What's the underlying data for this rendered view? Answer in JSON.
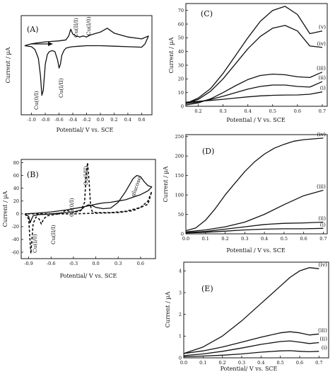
{
  "chart_data": [
    {
      "id": "A",
      "type": "line",
      "panel_label": "(A)",
      "xlabel": "Potential/ V vs. SCE",
      "ylabel": "Current / µA",
      "xlim": [
        -1.15,
        0.75
      ],
      "ylim": [
        -7,
        3.2
      ],
      "xticks": [
        -1.0,
        -0.8,
        -0.6,
        -0.4,
        -0.2,
        0.0,
        0.2,
        0.4,
        0.6
      ],
      "xtick_labels": [
        "-1.0",
        "-0.8",
        "-0.6",
        "-0.4",
        "-0.2",
        "0.0",
        "0.2",
        "0.4",
        "0.6"
      ],
      "annotations": [
        "Cu(0/I)",
        "Cu(I/II)",
        "Cu(II/I)",
        "Cu(I/0)"
      ],
      "series": [
        {
          "style": "solid",
          "x": [
            -1.1,
            -1.0,
            -0.95,
            -0.9,
            -0.87,
            -0.85,
            -0.83,
            -0.8,
            -0.77,
            -0.74,
            -0.7,
            -0.66,
            -0.62,
            -0.6,
            -0.58,
            -0.56,
            -0.53,
            -0.5,
            -0.45,
            -0.4,
            -0.3,
            -0.2,
            0.0,
            0.2,
            0.4,
            0.6,
            0.65,
            0.7,
            0.6,
            0.4,
            0.2,
            0.1,
            0.0,
            -0.1,
            -0.15,
            -0.2,
            -0.25,
            -0.3,
            -0.35,
            -0.4,
            -0.43,
            -0.46,
            -0.5,
            -0.6,
            -0.7,
            -0.8,
            -0.9,
            -1.0,
            -1.1
          ],
          "y": [
            0.1,
            0.0,
            -0.3,
            -1.2,
            -3.0,
            -5.0,
            -4.5,
            -1.8,
            -0.8,
            -0.5,
            -0.4,
            -0.5,
            -1.4,
            -2.2,
            -1.8,
            -0.9,
            -0.4,
            -0.15,
            -0.05,
            0.0,
            0.05,
            0.1,
            0.1,
            0.05,
            0.0,
            -0.05,
            0.3,
            1.1,
            0.8,
            1.0,
            1.4,
            1.9,
            1.5,
            1.3,
            1.2,
            1.0,
            1.1,
            1.0,
            1.1,
            1.3,
            1.8,
            1.1,
            0.7,
            0.6,
            0.55,
            0.5,
            0.4,
            0.3,
            0.1
          ]
        }
      ]
    },
    {
      "id": "B",
      "type": "line",
      "panel_label": "(B)",
      "xlabel": "Potential/ V vs. SCE",
      "ylabel": "Current / µA",
      "xlim": [
        -1.0,
        0.8
      ],
      "ylim": [
        -70,
        85
      ],
      "xticks": [
        -0.9,
        -0.6,
        -0.3,
        0.0,
        0.3,
        0.6
      ],
      "xtick_labels": [
        "-0.9",
        "-0.6",
        "-0.3",
        "0.0",
        "0.3",
        "0.6"
      ],
      "yticks": [
        -60,
        -40,
        -20,
        0,
        20,
        40,
        60,
        80
      ],
      "ytick_labels": [
        "-60",
        "-40",
        "-20",
        "0",
        "20",
        "40",
        "60",
        "80"
      ],
      "annotations": [
        "Cu(I/II)",
        "glucose",
        "Cu(0/I)",
        "Cu(II/I)",
        "Cu(I/0)"
      ],
      "series": [
        {
          "style": "solid",
          "x": [
            -0.95,
            -0.9,
            -0.88,
            -0.86,
            -0.84,
            -0.8,
            -0.75,
            -0.7,
            -0.6,
            -0.5,
            -0.4,
            -0.3,
            -0.2,
            -0.15,
            -0.1,
            -0.05,
            0.0,
            0.1,
            0.2,
            0.3,
            0.4,
            0.5,
            0.55,
            0.6,
            0.65,
            0.7,
            0.75,
            0.7,
            0.6,
            0.5,
            0.4,
            0.3,
            0.2,
            0.1,
            0.0,
            -0.2,
            -0.4,
            -0.6,
            -0.8,
            -0.95
          ],
          "y": [
            0,
            -4,
            -14,
            -8,
            -3,
            -2,
            -1,
            -1,
            0,
            1,
            2,
            3,
            6,
            11,
            14,
            13,
            10,
            8,
            9,
            18,
            35,
            55,
            60,
            58,
            50,
            44,
            42,
            36,
            30,
            26,
            22,
            20,
            18,
            17,
            15,
            10,
            6,
            3,
            1,
            0
          ]
        },
        {
          "style": "dashed",
          "x": [
            -0.95,
            -0.9,
            -0.88,
            -0.87,
            -0.86,
            -0.84,
            -0.8,
            -0.76,
            -0.73,
            -0.7,
            -0.65,
            -0.6,
            -0.5,
            -0.45,
            -0.4,
            -0.35,
            -0.3,
            -0.2,
            -0.15,
            -0.13,
            -0.11,
            -0.09,
            -0.07,
            -0.05,
            0.0,
            0.2,
            0.4,
            0.6,
            0.7,
            0.75,
            0.7,
            0.5,
            0.3,
            0.0,
            -0.3,
            -0.6,
            -0.9,
            -0.95
          ],
          "y": [
            0,
            -8,
            -45,
            -62,
            -45,
            -15,
            -5,
            -8,
            -16,
            -8,
            -3,
            -2,
            0,
            2,
            6,
            4,
            2,
            5,
            18,
            60,
            80,
            50,
            12,
            4,
            2,
            2,
            4,
            10,
            20,
            35,
            15,
            5,
            2,
            1,
            0,
            0,
            0,
            0
          ]
        }
      ]
    },
    {
      "id": "C",
      "type": "line",
      "panel_label": "(C)",
      "xlabel": "Potential / V vs. SCE",
      "ylabel": "Current / µA",
      "xlim": [
        0.15,
        0.72
      ],
      "ylim": [
        0,
        75
      ],
      "xticks": [
        0.2,
        0.3,
        0.4,
        0.5,
        0.6,
        0.7
      ],
      "xtick_labels": [
        "0.2",
        "0.3",
        "0.4",
        "0.5",
        "0.6",
        "0.7"
      ],
      "yticks": [
        0,
        10,
        20,
        30,
        40,
        50,
        60,
        70
      ],
      "ytick_labels": [
        "0",
        "10",
        "20",
        "30",
        "40",
        "50",
        "60",
        "70"
      ],
      "series": [
        {
          "name": "(i)",
          "x": [
            0.15,
            0.2,
            0.25,
            0.3,
            0.35,
            0.4,
            0.45,
            0.5,
            0.55,
            0.6,
            0.65,
            0.7
          ],
          "y": [
            3,
            3.6,
            4.3,
            5.1,
            6.0,
            6.9,
            7.6,
            8.0,
            8.2,
            8.3,
            8.8,
            10.5
          ]
        },
        {
          "name": "(ii)",
          "x": [
            0.15,
            0.2,
            0.25,
            0.3,
            0.35,
            0.4,
            0.45,
            0.5,
            0.55,
            0.6,
            0.65,
            0.7
          ],
          "y": [
            2,
            3.2,
            5.0,
            7.3,
            10.0,
            12.5,
            14.5,
            15.5,
            15.5,
            14.5,
            14.0,
            18.0
          ]
        },
        {
          "name": "(iii)",
          "x": [
            0.15,
            0.2,
            0.25,
            0.3,
            0.35,
            0.4,
            0.45,
            0.5,
            0.55,
            0.6,
            0.65,
            0.7
          ],
          "y": [
            1,
            2.5,
            5.5,
            10.0,
            15.0,
            19.5,
            22.5,
            23.5,
            23.0,
            21.5,
            21.0,
            25.0
          ]
        },
        {
          "name": "(iv)",
          "x": [
            0.15,
            0.2,
            0.25,
            0.3,
            0.35,
            0.4,
            0.45,
            0.5,
            0.55,
            0.6,
            0.65,
            0.7
          ],
          "y": [
            2,
            5.0,
            11.0,
            20.0,
            31.0,
            42.0,
            51.0,
            57.0,
            59.0,
            55.0,
            44.0,
            43.0
          ]
        },
        {
          "name": "(v)",
          "x": [
            0.15,
            0.2,
            0.25,
            0.3,
            0.35,
            0.4,
            0.45,
            0.5,
            0.55,
            0.6,
            0.65,
            0.7
          ],
          "y": [
            2,
            6.0,
            13.0,
            24.0,
            37.0,
            50.0,
            62.0,
            70.0,
            73.0,
            67.0,
            53.0,
            55.0
          ]
        }
      ]
    },
    {
      "id": "D",
      "type": "line",
      "panel_label": "(D)",
      "xlabel": "Potential / V vs. SCE",
      "ylabel": "Current / µA",
      "xlim": [
        0.0,
        0.72
      ],
      "ylim": [
        0,
        255
      ],
      "xticks": [
        0.0,
        0.1,
        0.2,
        0.3,
        0.4,
        0.5,
        0.6,
        0.7
      ],
      "xtick_labels": [
        "0.0",
        "0.1",
        "0.2",
        "0.3",
        "0.4",
        "0.5",
        "0.6",
        "0.7"
      ],
      "yticks": [
        0,
        50,
        100,
        150,
        200,
        250
      ],
      "ytick_labels": [
        "0",
        "50",
        "100",
        "150",
        "200",
        "250"
      ],
      "series": [
        {
          "name": "(i)",
          "x": [
            0.0,
            0.1,
            0.2,
            0.3,
            0.4,
            0.5,
            0.6,
            0.7
          ],
          "y": [
            2,
            4,
            7,
            10,
            12,
            13,
            13,
            14
          ]
        },
        {
          "name": "(ii)",
          "x": [
            0.0,
            0.1,
            0.2,
            0.3,
            0.4,
            0.5,
            0.6,
            0.7
          ],
          "y": [
            3,
            6,
            12,
            18,
            24,
            27,
            28,
            30
          ]
        },
        {
          "name": "(iii)",
          "x": [
            0.0,
            0.1,
            0.2,
            0.3,
            0.4,
            0.5,
            0.6,
            0.7
          ],
          "y": [
            5,
            10,
            18,
            30,
            50,
            75,
            98,
            112
          ]
        },
        {
          "name": "(iv)",
          "x": [
            0.0,
            0.05,
            0.1,
            0.15,
            0.2,
            0.25,
            0.3,
            0.35,
            0.4,
            0.45,
            0.5,
            0.55,
            0.6,
            0.65,
            0.7
          ],
          "y": [
            8,
            15,
            35,
            65,
            100,
            130,
            160,
            185,
            205,
            220,
            230,
            238,
            242,
            244,
            246
          ]
        }
      ]
    },
    {
      "id": "E",
      "type": "line",
      "panel_label": "(E)",
      "xlabel": "Potential/ V vs. SCE",
      "ylabel": "Current / µA",
      "xlim": [
        0.0,
        0.75
      ],
      "ylim": [
        0,
        4.4
      ],
      "xticks": [
        0.0,
        0.1,
        0.2,
        0.3,
        0.4,
        0.5,
        0.6,
        0.7
      ],
      "xtick_labels": [
        "0.0",
        "0.1",
        "0.2",
        "0.3",
        "0.4",
        "0.5",
        "0.6",
        "0.7"
      ],
      "yticks": [
        0,
        1,
        2,
        3,
        4
      ],
      "ytick_labels": [
        "0",
        "1",
        "2",
        "3",
        "4"
      ],
      "series": [
        {
          "name": "(i)",
          "x": [
            0.0,
            0.1,
            0.2,
            0.3,
            0.4,
            0.5,
            0.55,
            0.6,
            0.65,
            0.7
          ],
          "y": [
            0.05,
            0.08,
            0.12,
            0.18,
            0.26,
            0.32,
            0.33,
            0.3,
            0.28,
            0.3
          ]
        },
        {
          "name": "(ii)",
          "x": [
            0.0,
            0.1,
            0.2,
            0.3,
            0.4,
            0.5,
            0.55,
            0.6,
            0.65,
            0.7
          ],
          "y": [
            0.1,
            0.18,
            0.3,
            0.45,
            0.62,
            0.75,
            0.78,
            0.72,
            0.66,
            0.7
          ]
        },
        {
          "name": "(iii)",
          "x": [
            0.0,
            0.1,
            0.2,
            0.3,
            0.4,
            0.5,
            0.55,
            0.6,
            0.65,
            0.7
          ],
          "y": [
            0.2,
            0.32,
            0.5,
            0.72,
            0.95,
            1.15,
            1.2,
            1.15,
            1.05,
            1.1
          ]
        },
        {
          "name": "(iv)",
          "x": [
            0.0,
            0.1,
            0.2,
            0.3,
            0.4,
            0.5,
            0.55,
            0.6,
            0.65,
            0.7
          ],
          "y": [
            0.2,
            0.5,
            1.0,
            1.7,
            2.5,
            3.3,
            3.7,
            4.0,
            4.15,
            4.1
          ]
        }
      ]
    }
  ]
}
